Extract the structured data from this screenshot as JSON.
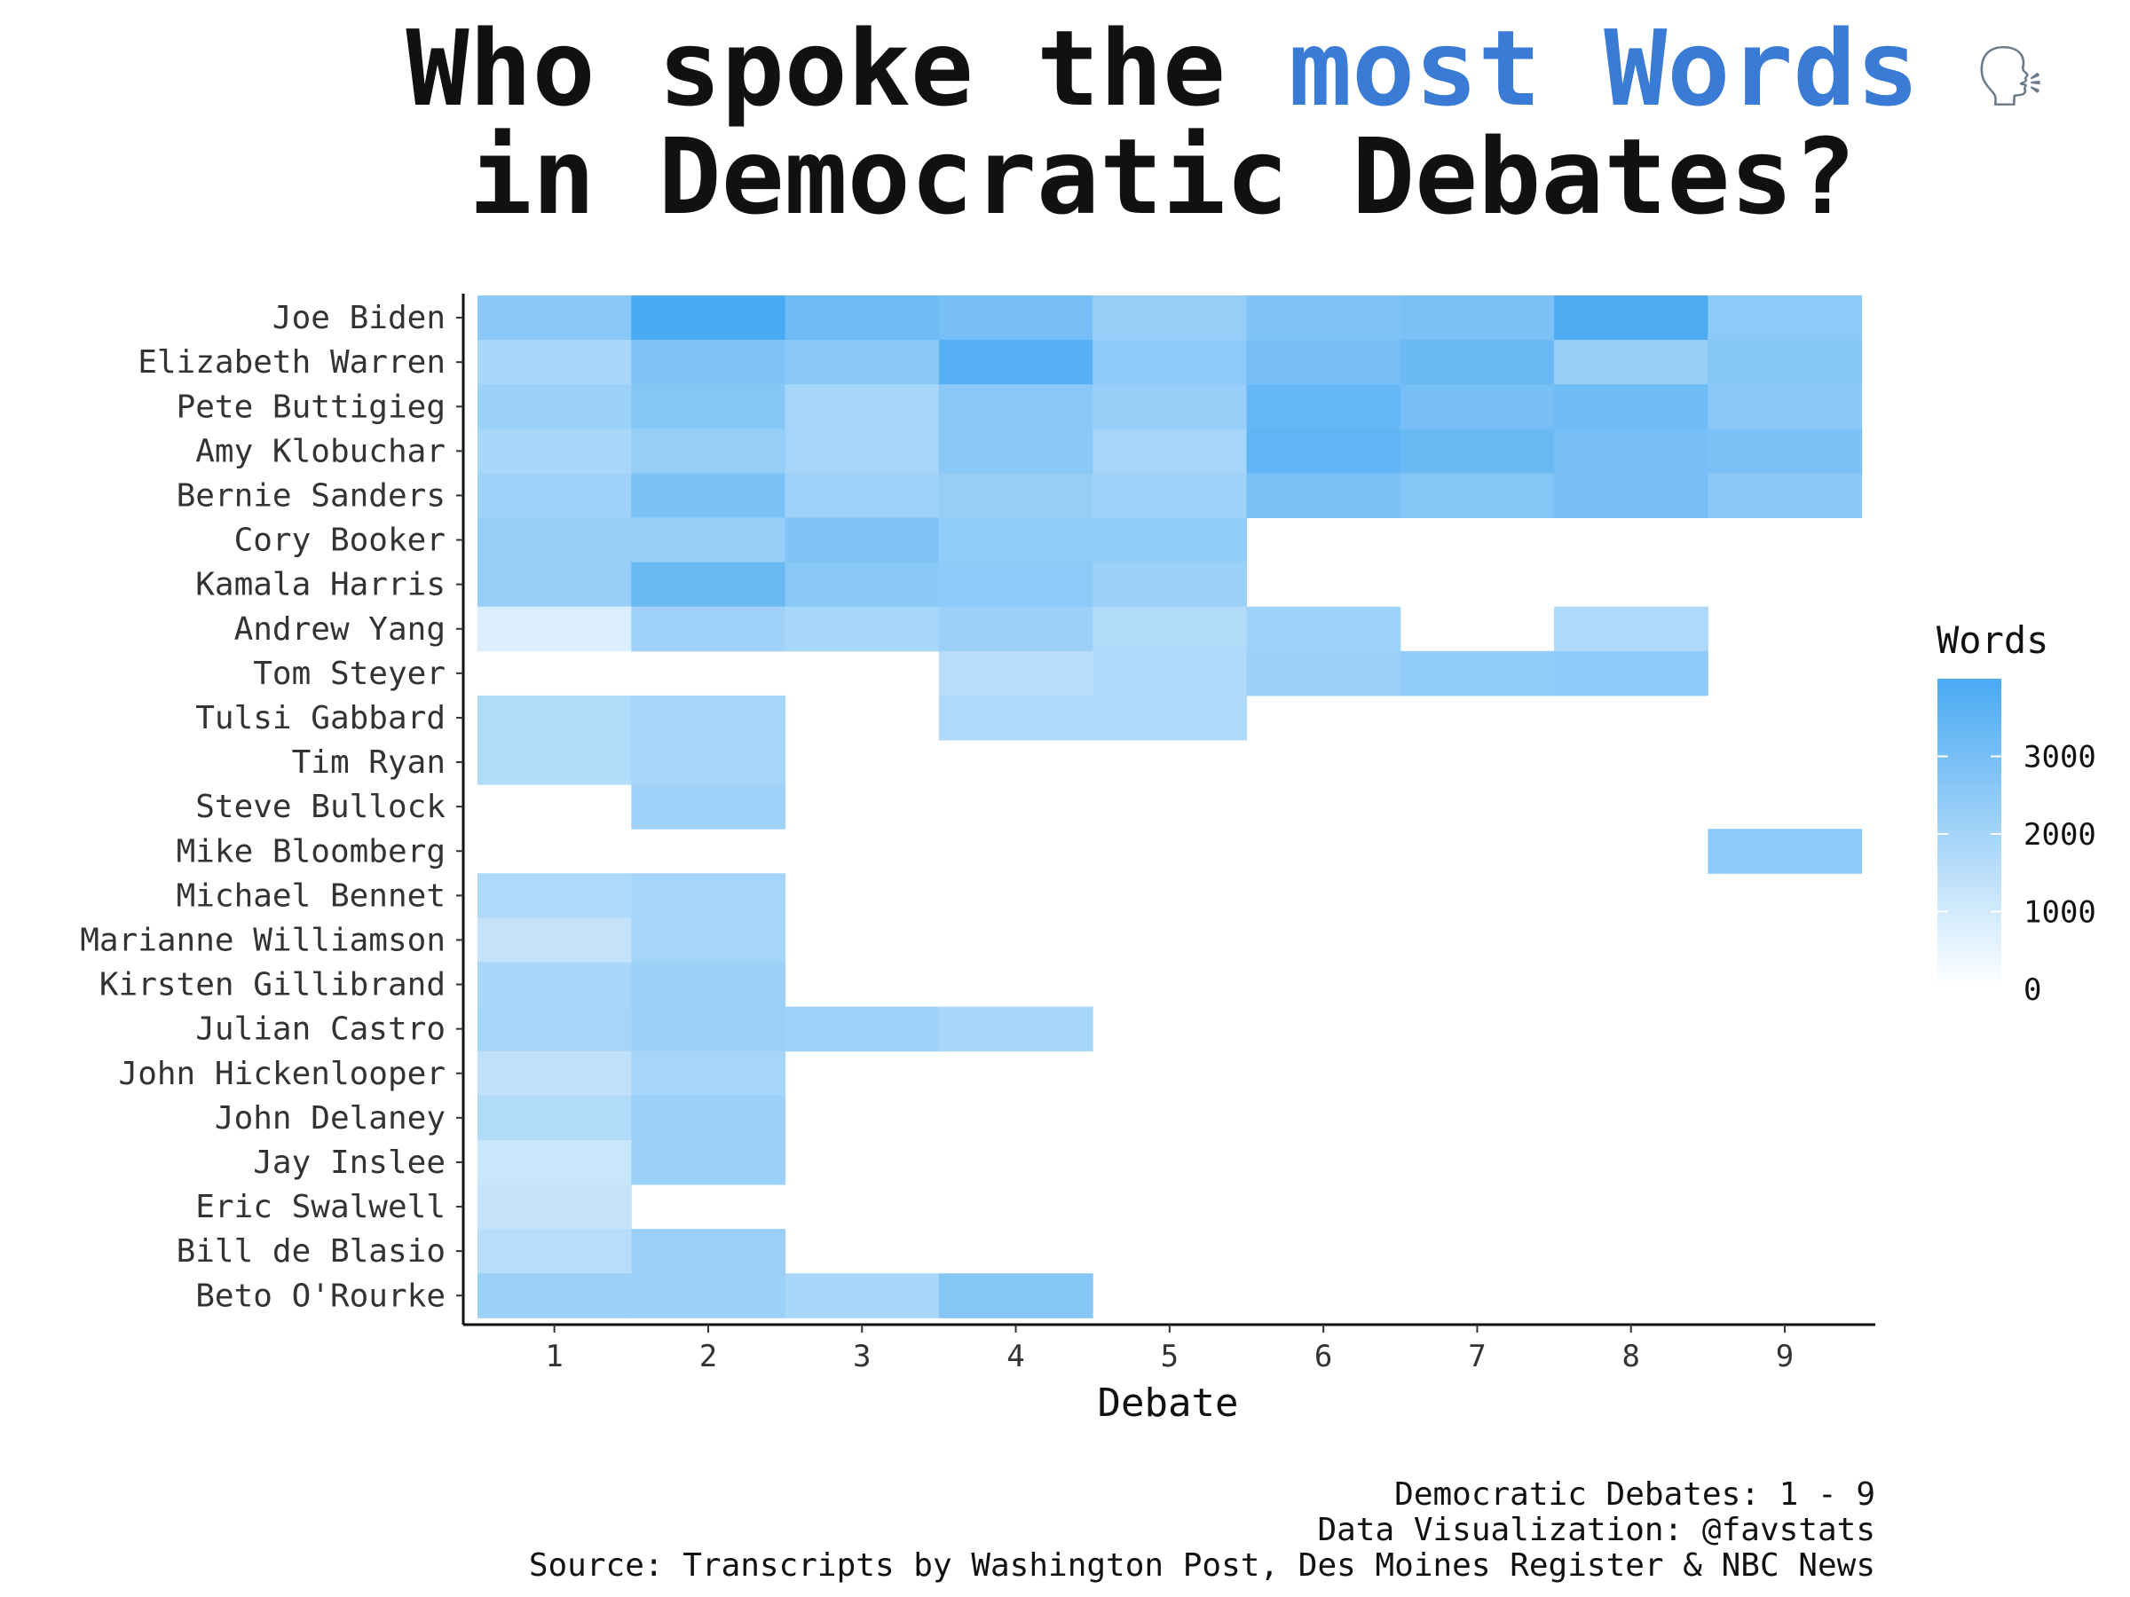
{
  "title": {
    "line1_prefix": "Who spoke the ",
    "line1_highlight": "most Words",
    "line1_icon": "🗣",
    "line2": "in Democratic Debates?",
    "highlight_color": "#3a7bd5"
  },
  "caption": [
    "Democratic Debates: 1 - 9",
    "Data Visualization: @favstats",
    "Source: Transcripts by Washington Post, Des Moines Register & NBC News"
  ],
  "chart_data": {
    "type": "heatmap",
    "xlabel": "Debate",
    "ylabel": "",
    "x": [
      "1",
      "2",
      "3",
      "4",
      "5",
      "6",
      "7",
      "8",
      "9"
    ],
    "y": [
      "Joe Biden",
      "Elizabeth Warren",
      "Pete Buttigieg",
      "Amy Klobuchar",
      "Bernie Sanders",
      "Cory Booker",
      "Kamala Harris",
      "Andrew Yang",
      "Tom Steyer",
      "Tulsi Gabbard",
      "Tim Ryan",
      "Steve Bullock",
      "Mike Bloomberg",
      "Michael Bennet",
      "Marianne Williamson",
      "Kirsten Gillibrand",
      "Julian Castro",
      "John Hickenlooper",
      "John Delaney",
      "Jay Inslee",
      "Eric Swalwell",
      "Bill de Blasio",
      "Beto O'Rourke"
    ],
    "values": [
      [
        2600,
        4000,
        3200,
        3000,
        2300,
        2800,
        2900,
        3900,
        2500
      ],
      [
        1900,
        2800,
        2600,
        3700,
        2500,
        3000,
        3300,
        2300,
        2700
      ],
      [
        2200,
        2700,
        2000,
        2600,
        2300,
        3400,
        3000,
        3200,
        2600
      ],
      [
        1900,
        2300,
        2000,
        2600,
        2000,
        3500,
        3300,
        3000,
        2900
      ],
      [
        2100,
        2900,
        2100,
        2300,
        2100,
        2900,
        2700,
        3000,
        2600
      ],
      [
        2300,
        2300,
        2800,
        2400,
        2400,
        null,
        null,
        null,
        null
      ],
      [
        2300,
        3300,
        2600,
        2500,
        2200,
        null,
        null,
        null,
        null
      ],
      [
        800,
        2100,
        1900,
        2200,
        1700,
        2100,
        null,
        1800,
        null
      ],
      [
        null,
        null,
        null,
        1600,
        1800,
        2200,
        2400,
        2500,
        null
      ],
      [
        1700,
        2000,
        null,
        1800,
        1800,
        null,
        null,
        null,
        null
      ],
      [
        1700,
        2000,
        null,
        null,
        null,
        null,
        null,
        null,
        null
      ],
      [
        null,
        2100,
        null,
        null,
        null,
        null,
        null,
        null,
        null
      ],
      [
        null,
        null,
        null,
        null,
        null,
        null,
        null,
        null,
        2500
      ],
      [
        1800,
        2000,
        null,
        null,
        null,
        null,
        null,
        null,
        null
      ],
      [
        1300,
        2000,
        null,
        null,
        null,
        null,
        null,
        null,
        null
      ],
      [
        1900,
        2200,
        null,
        null,
        null,
        null,
        null,
        null,
        null
      ],
      [
        2000,
        2200,
        2100,
        1900,
        null,
        null,
        null,
        null,
        null
      ],
      [
        1400,
        2000,
        null,
        null,
        null,
        null,
        null,
        null,
        null
      ],
      [
        1700,
        2200,
        null,
        null,
        null,
        null,
        null,
        null,
        null
      ],
      [
        1200,
        2200,
        null,
        null,
        null,
        null,
        null,
        null,
        null
      ],
      [
        1300,
        null,
        null,
        null,
        null,
        null,
        null,
        null,
        null
      ],
      [
        1600,
        2200,
        null,
        null,
        null,
        null,
        null,
        null,
        null
      ],
      [
        2200,
        2200,
        1900,
        2700,
        null,
        null,
        null,
        null,
        null
      ]
    ],
    "legend": {
      "title": "Words",
      "ticks": [
        0,
        1000,
        2000,
        3000
      ],
      "range": [
        0,
        4000
      ],
      "low_color": "#ffffff",
      "high_color": "#4aaaf3",
      "placement": "right"
    }
  }
}
